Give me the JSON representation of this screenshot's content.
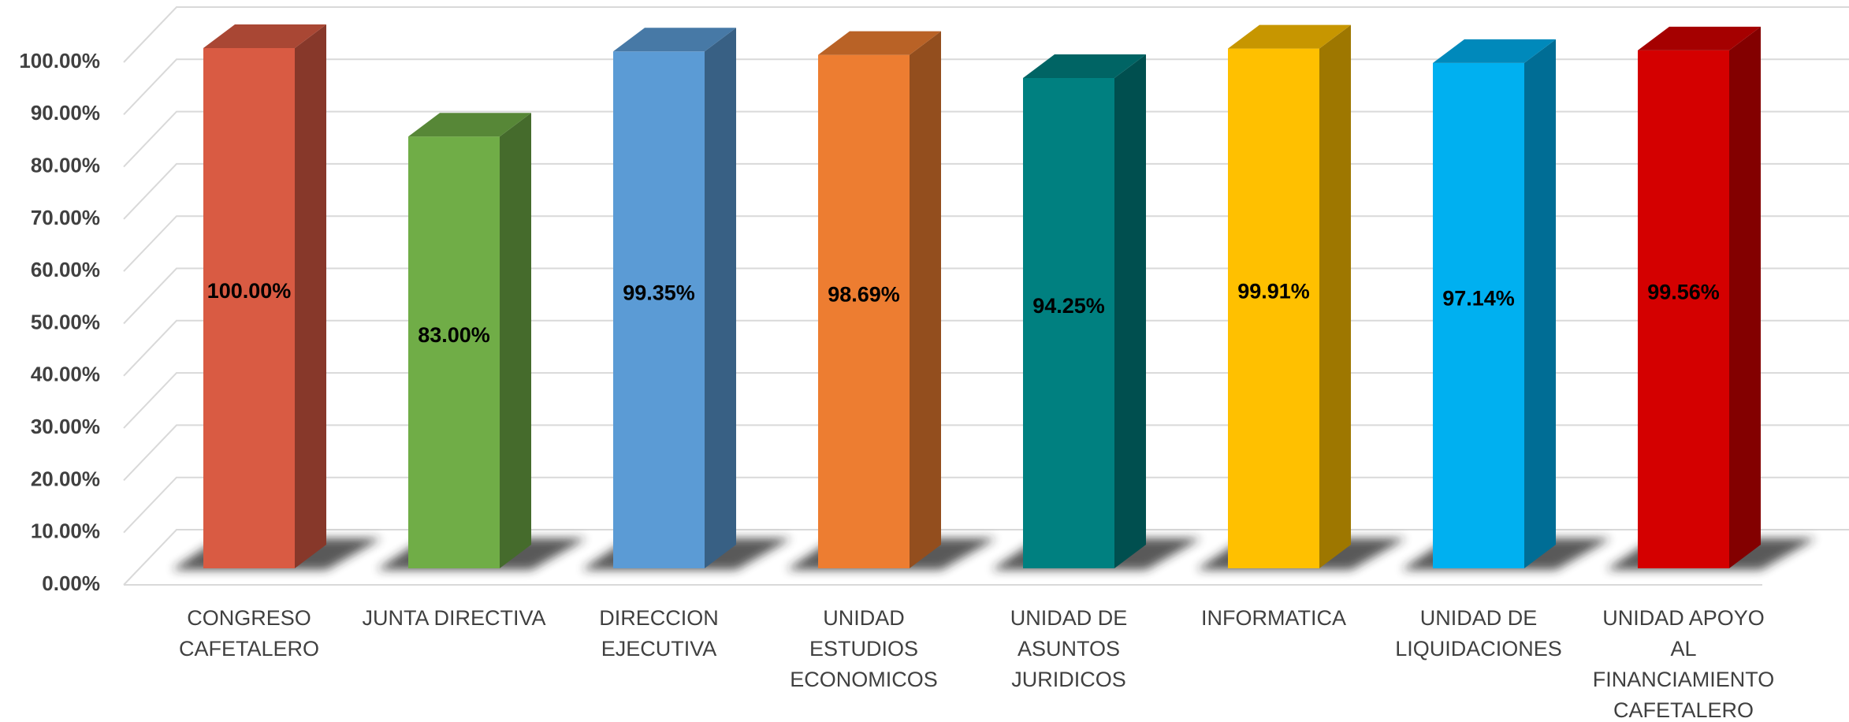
{
  "chart_data": {
    "type": "bar3d",
    "categories": [
      "CONGRESO CAFETALERO",
      "JUNTA DIRECTIVA",
      "DIRECCION EJECUTIVA",
      "UNIDAD ESTUDIOS ECONOMICOS",
      "UNIDAD DE ASUNTOS JURIDICOS",
      "INFORMATICA",
      "UNIDAD DE LIQUIDACIONES",
      "UNIDAD APOYO AL FINANCIAMIENTO CAFETALERO"
    ],
    "values": [
      100,
      83,
      99.35,
      98.69,
      94.25,
      99.91,
      97.14,
      99.56
    ],
    "value_labels": [
      "100.00%",
      "83.00%",
      "99.35%",
      "98.69%",
      "94.25%",
      "99.91%",
      "97.14%",
      "99.56%"
    ],
    "colors": [
      "#d95b43",
      "#70ad47",
      "#5b9bd5",
      "#ed7d31",
      "#008080",
      "#ffc000",
      "#00b0f0",
      "#d40000"
    ],
    "ylim": [
      0,
      100
    ],
    "yticks": [
      {
        "value": 0,
        "label": "0.00%"
      },
      {
        "value": 10,
        "label": "10.00%"
      },
      {
        "value": 20,
        "label": "20.00%"
      },
      {
        "value": 30,
        "label": "30.00%"
      },
      {
        "value": 40,
        "label": "40.00%"
      },
      {
        "value": 50,
        "label": "50.00%"
      },
      {
        "value": 60,
        "label": "60.00%"
      },
      {
        "value": 70,
        "label": "70.00%"
      },
      {
        "value": 80,
        "label": "80.00%"
      },
      {
        "value": 90,
        "label": "90.00%"
      },
      {
        "value": 100,
        "label": "100.00%"
      }
    ],
    "grid": true
  }
}
